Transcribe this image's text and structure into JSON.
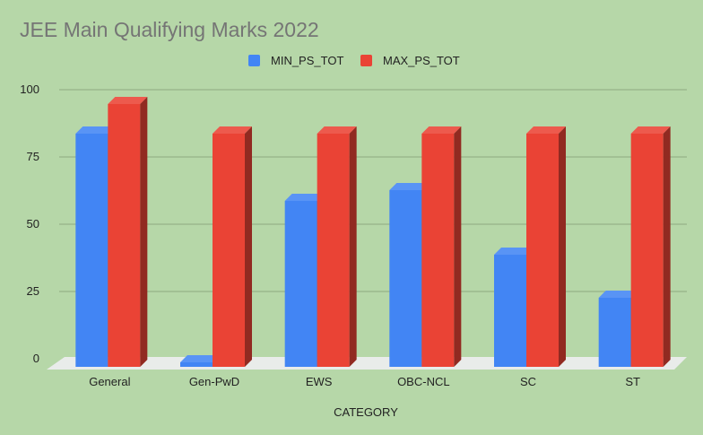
{
  "chart_data": {
    "type": "bar",
    "title": "JEE Main Qualifying Marks 2022",
    "xlabel": "CATEGORY",
    "ylabel": "",
    "categories": [
      "General",
      "Gen-PwD",
      "EWS",
      "OBC-NCL",
      "SC",
      "ST"
    ],
    "series": [
      {
        "name": "MIN_PS_TOT",
        "values": [
          85,
          0,
          60,
          64,
          40,
          24
        ],
        "color": "#4285f4"
      },
      {
        "name": "MAX_PS_TOT",
        "values": [
          96,
          85,
          85,
          85,
          85,
          85
        ],
        "color": "#ea4335"
      }
    ],
    "ylim": [
      0,
      100
    ],
    "yticks": [
      "0",
      "25",
      "50",
      "75",
      "100"
    ],
    "grid": true,
    "legend": "top",
    "style": "3d-column"
  }
}
